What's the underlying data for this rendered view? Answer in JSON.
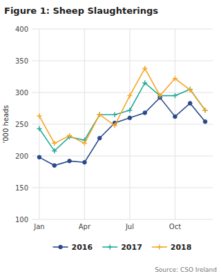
{
  "chart_data": {
    "type": "line",
    "title": "Figure 1: Sheep Slaughterings",
    "y_label": "'000 heads",
    "annotations": [
      "Source: CSO Ireland"
    ],
    "categories": [
      "Jan",
      null,
      null,
      "Apr",
      null,
      null,
      "Jul",
      null,
      null,
      "Oct",
      null,
      null
    ],
    "series": [
      {
        "name": "2016",
        "color": "#2b4a8b",
        "marker": "circle",
        "values": [
          198,
          185,
          192,
          190,
          228,
          252,
          260,
          268,
          292,
          262,
          283,
          254
        ]
      },
      {
        "name": "2017",
        "color": "#25a99a",
        "marker": "plus",
        "values": [
          243,
          208,
          230,
          225,
          265,
          265,
          272,
          315,
          295,
          295,
          305,
          272
        ]
      },
      {
        "name": "2018",
        "color": "#f5a623",
        "marker": "plus",
        "values": [
          263,
          220,
          232,
          220,
          265,
          248,
          295,
          338,
          295,
          322,
          304,
          272
        ]
      }
    ],
    "ylim": [
      100,
      400
    ],
    "yticks": [
      100,
      150,
      200,
      250,
      300,
      350,
      400
    ],
    "grid": true,
    "legend": "bottom"
  }
}
